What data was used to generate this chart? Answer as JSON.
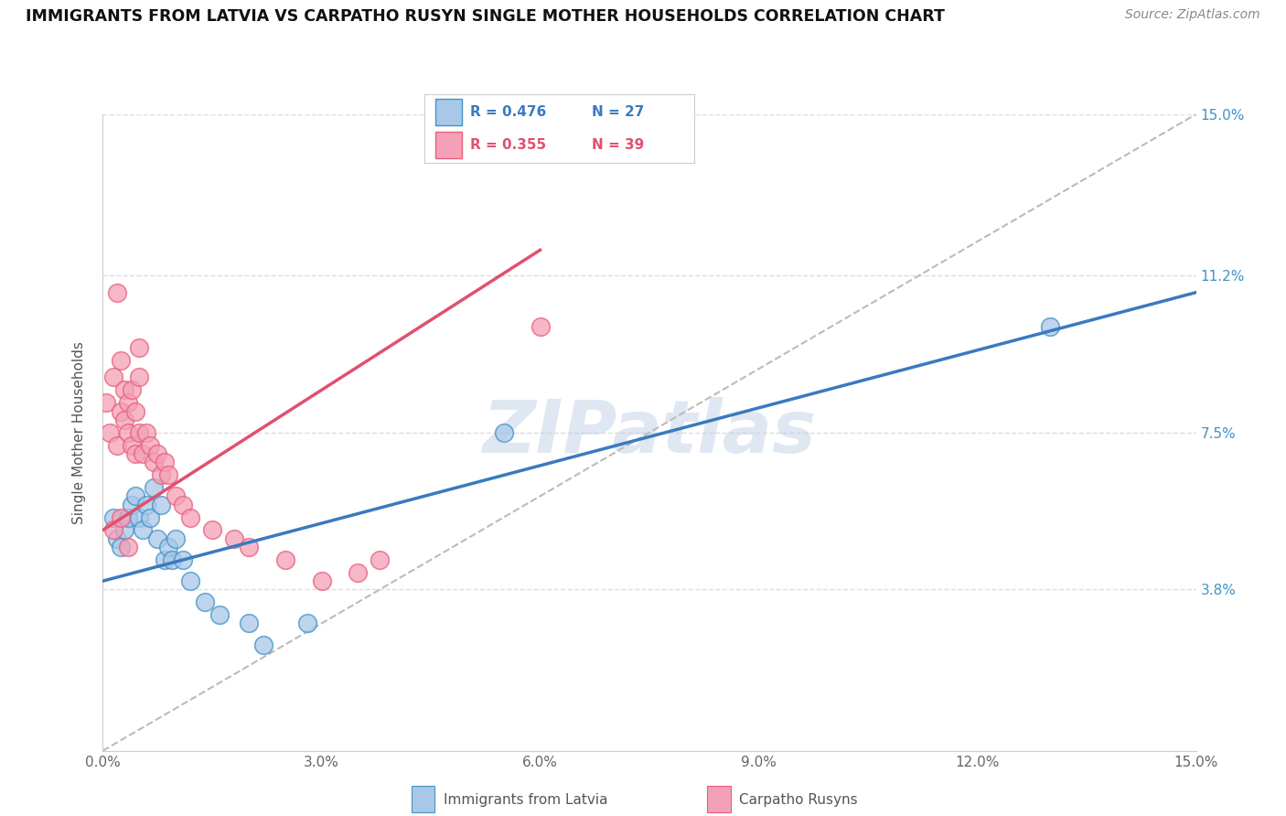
{
  "title": "IMMIGRANTS FROM LATVIA VS CARPATHO RUSYN SINGLE MOTHER HOUSEHOLDS CORRELATION CHART",
  "source": "Source: ZipAtlas.com",
  "ylabel": "Single Mother Households",
  "xmin": 0.0,
  "xmax": 15.0,
  "ymin": 0.0,
  "ymax": 15.0,
  "ytick_vals": [
    3.8,
    7.5,
    11.2,
    15.0
  ],
  "ytick_labels": [
    "3.8%",
    "7.5%",
    "11.2%",
    "15.0%"
  ],
  "xtick_vals": [
    0.0,
    3.0,
    6.0,
    9.0,
    12.0,
    15.0
  ],
  "xtick_labels": [
    "0.0%",
    "3.0%",
    "6.0%",
    "9.0%",
    "12.0%",
    "15.0%"
  ],
  "color_blue": "#a8c8e8",
  "color_pink": "#f4a0b8",
  "color_blue_edge": "#4292c6",
  "color_pink_edge": "#e8607a",
  "color_blue_line": "#3a7abf",
  "color_pink_line": "#e05070",
  "color_diagonal": "#bbbbbb",
  "watermark": "ZIPatlas",
  "scatter_blue": [
    [
      0.15,
      5.5
    ],
    [
      0.2,
      5.0
    ],
    [
      0.25,
      4.8
    ],
    [
      0.3,
      5.2
    ],
    [
      0.35,
      5.5
    ],
    [
      0.4,
      5.8
    ],
    [
      0.45,
      6.0
    ],
    [
      0.5,
      5.5
    ],
    [
      0.55,
      5.2
    ],
    [
      0.6,
      5.8
    ],
    [
      0.65,
      5.5
    ],
    [
      0.7,
      6.2
    ],
    [
      0.75,
      5.0
    ],
    [
      0.8,
      5.8
    ],
    [
      0.85,
      4.5
    ],
    [
      0.9,
      4.8
    ],
    [
      0.95,
      4.5
    ],
    [
      1.0,
      5.0
    ],
    [
      1.1,
      4.5
    ],
    [
      1.2,
      4.0
    ],
    [
      1.4,
      3.5
    ],
    [
      1.6,
      3.2
    ],
    [
      2.0,
      3.0
    ],
    [
      2.2,
      2.5
    ],
    [
      2.8,
      3.0
    ],
    [
      5.5,
      7.5
    ],
    [
      13.0,
      10.0
    ]
  ],
  "scatter_pink": [
    [
      0.05,
      8.2
    ],
    [
      0.1,
      7.5
    ],
    [
      0.15,
      8.8
    ],
    [
      0.2,
      7.2
    ],
    [
      0.25,
      8.0
    ],
    [
      0.25,
      9.2
    ],
    [
      0.3,
      7.8
    ],
    [
      0.3,
      8.5
    ],
    [
      0.35,
      7.5
    ],
    [
      0.35,
      8.2
    ],
    [
      0.4,
      7.2
    ],
    [
      0.4,
      8.5
    ],
    [
      0.45,
      7.0
    ],
    [
      0.45,
      8.0
    ],
    [
      0.5,
      7.5
    ],
    [
      0.5,
      8.8
    ],
    [
      0.55,
      7.0
    ],
    [
      0.6,
      7.5
    ],
    [
      0.65,
      7.2
    ],
    [
      0.7,
      6.8
    ],
    [
      0.75,
      7.0
    ],
    [
      0.8,
      6.5
    ],
    [
      0.85,
      6.8
    ],
    [
      0.9,
      6.5
    ],
    [
      1.0,
      6.0
    ],
    [
      1.1,
      5.8
    ],
    [
      1.2,
      5.5
    ],
    [
      1.5,
      5.2
    ],
    [
      1.8,
      5.0
    ],
    [
      2.0,
      4.8
    ],
    [
      2.5,
      4.5
    ],
    [
      3.0,
      4.0
    ],
    [
      3.5,
      4.2
    ],
    [
      3.8,
      4.5
    ],
    [
      0.2,
      10.8
    ],
    [
      0.5,
      9.5
    ],
    [
      6.0,
      10.0
    ],
    [
      0.15,
      5.2
    ],
    [
      0.25,
      5.5
    ],
    [
      0.35,
      4.8
    ]
  ],
  "blue_line": {
    "x0": 0.0,
    "x1": 15.0,
    "y0": 4.0,
    "y1": 10.8
  },
  "pink_line": {
    "x0": 0.0,
    "x1": 6.0,
    "y0": 5.2,
    "y1": 11.8
  },
  "diag_line": {
    "x0": 0.0,
    "x1": 15.0,
    "y0": 0.0,
    "y1": 15.0
  }
}
